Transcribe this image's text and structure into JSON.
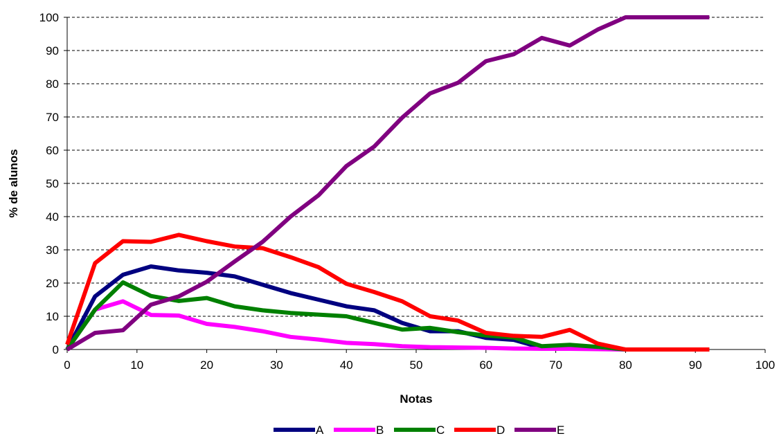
{
  "chart_data": {
    "type": "line",
    "title": "",
    "xlabel": "Notas",
    "ylabel": "% de alunos",
    "xlim": [
      0,
      100
    ],
    "ylim": [
      0,
      100
    ],
    "xticks": [
      0,
      10,
      20,
      30,
      40,
      50,
      60,
      70,
      80,
      90,
      100
    ],
    "yticks": [
      0,
      10,
      20,
      30,
      40,
      50,
      60,
      70,
      80,
      90,
      100
    ],
    "grid": "horizontal-dashed",
    "legend_position": "bottom",
    "x": [
      0,
      4,
      8,
      12,
      16,
      20,
      24,
      28,
      32,
      36,
      40,
      44,
      48,
      52,
      56,
      60,
      64,
      68,
      72,
      76,
      80,
      84,
      88,
      92
    ],
    "series": [
      {
        "name": "A",
        "color": "#000080",
        "values": [
          0,
          16,
          22.5,
          25,
          23.8,
          23.1,
          22,
          19.5,
          17,
          15,
          13,
          11.8,
          8,
          5.5,
          5.5,
          3.5,
          2.9,
          0.5,
          0.4,
          0.2,
          0,
          0,
          0,
          0
        ]
      },
      {
        "name": "B",
        "color": "#FF00FF",
        "values": [
          0,
          12,
          14.5,
          10.4,
          10.2,
          7.7,
          6.8,
          5.5,
          3.8,
          3,
          2,
          1.6,
          1,
          0.7,
          0.6,
          0.5,
          0.3,
          0.2,
          0.2,
          0.1,
          0,
          0,
          0,
          0
        ]
      },
      {
        "name": "C",
        "color": "#008000",
        "values": [
          0,
          12,
          20.2,
          16.1,
          14.6,
          15.5,
          13,
          11.8,
          11,
          10.5,
          10,
          8,
          6,
          6.5,
          5.2,
          4.2,
          3.6,
          1,
          1.4,
          0.8,
          0,
          0,
          0,
          0
        ]
      },
      {
        "name": "D",
        "color": "#FF0000",
        "values": [
          1.5,
          26,
          32.6,
          32.4,
          34.5,
          32.6,
          31,
          30.5,
          27.8,
          24.8,
          19.8,
          17.3,
          14.5,
          10,
          8.7,
          5,
          4.1,
          3.8,
          5.9,
          1.8,
          0,
          0,
          0,
          0
        ]
      },
      {
        "name": "E",
        "color": "#800080",
        "values": [
          0,
          5,
          5.8,
          13.5,
          16,
          20.4,
          26.5,
          32.4,
          40,
          46.4,
          55.2,
          61.1,
          69.8,
          77.1,
          80.3,
          86.8,
          88.9,
          93.8,
          91.5,
          96.3,
          100,
          100,
          100,
          100
        ]
      }
    ]
  }
}
